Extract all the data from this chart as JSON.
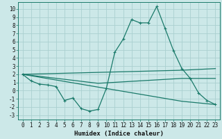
{
  "xlabel": "Humidex (Indice chaleur)",
  "bg_color": "#cce8e8",
  "grid_color": "#aad0d0",
  "line_color": "#1a7a6a",
  "xlim": [
    -0.5,
    23.5
  ],
  "ylim": [
    -3.5,
    10.8
  ],
  "xticks": [
    0,
    1,
    2,
    3,
    4,
    5,
    6,
    7,
    8,
    9,
    10,
    11,
    12,
    13,
    14,
    15,
    16,
    17,
    18,
    19,
    20,
    21,
    22,
    23
  ],
  "yticks": [
    -3,
    -2,
    -1,
    0,
    1,
    2,
    3,
    4,
    5,
    6,
    7,
    8,
    9,
    10
  ],
  "line1_x": [
    0,
    1,
    2,
    3,
    4,
    5,
    6,
    7,
    8,
    9,
    10,
    11,
    12,
    13,
    14,
    15,
    16,
    17,
    18,
    19,
    20,
    21,
    22,
    23
  ],
  "line1_y": [
    2.0,
    1.2,
    0.8,
    0.7,
    0.5,
    -1.2,
    -0.9,
    -2.2,
    -2.5,
    -2.3,
    0.3,
    4.7,
    6.3,
    8.7,
    8.3,
    8.3,
    10.3,
    7.6,
    4.9,
    2.7,
    1.5,
    -0.3,
    -1.2,
    -1.7
  ],
  "line2_x": [
    0,
    19,
    23
  ],
  "line2_y": [
    2.0,
    2.5,
    2.7
  ],
  "line3_x": [
    0,
    19,
    23
  ],
  "line3_y": [
    2.0,
    -1.3,
    -1.7
  ],
  "line4_x": [
    0,
    9,
    19,
    23
  ],
  "line4_y": [
    2.0,
    0.9,
    1.5,
    1.5
  ],
  "xlabel_fontsize": 6.5,
  "tick_fontsize": 5.5
}
